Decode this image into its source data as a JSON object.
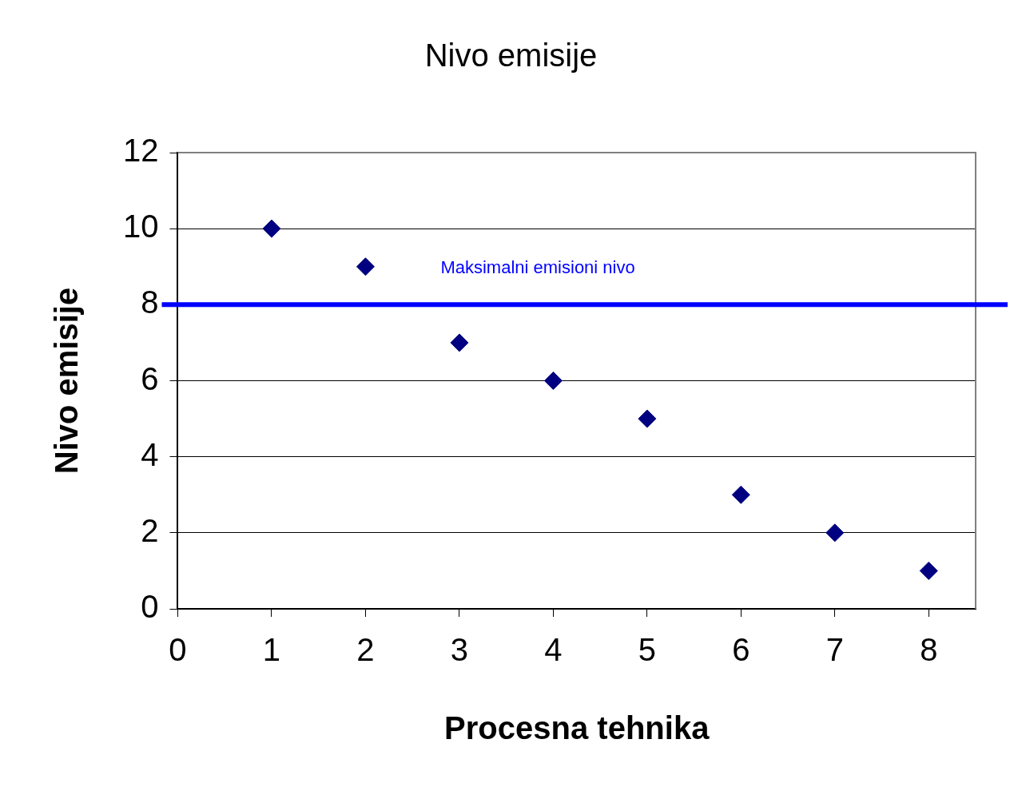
{
  "chart_data": {
    "type": "scatter",
    "title": "Nivo emisije",
    "xlabel": "Procesna tehnika",
    "ylabel": "Nivo emisije",
    "x": [
      1,
      2,
      3,
      4,
      5,
      6,
      7,
      8
    ],
    "values": [
      10,
      9,
      7,
      6,
      5,
      3,
      2,
      1
    ],
    "color": "#000080",
    "marker": "diamond",
    "xlim": [
      0,
      8.5
    ],
    "xticks": [
      0,
      1,
      2,
      3,
      4,
      5,
      6,
      7,
      8
    ],
    "ylim": [
      0,
      12
    ],
    "yticks": [
      0,
      2,
      4,
      6,
      8,
      10,
      12
    ],
    "grid": "y",
    "legend": false,
    "ref_lines": [
      {
        "axis": "y",
        "value": 8,
        "label": "Maksimalni emisioni nivo",
        "color": "#0000ff"
      }
    ]
  }
}
